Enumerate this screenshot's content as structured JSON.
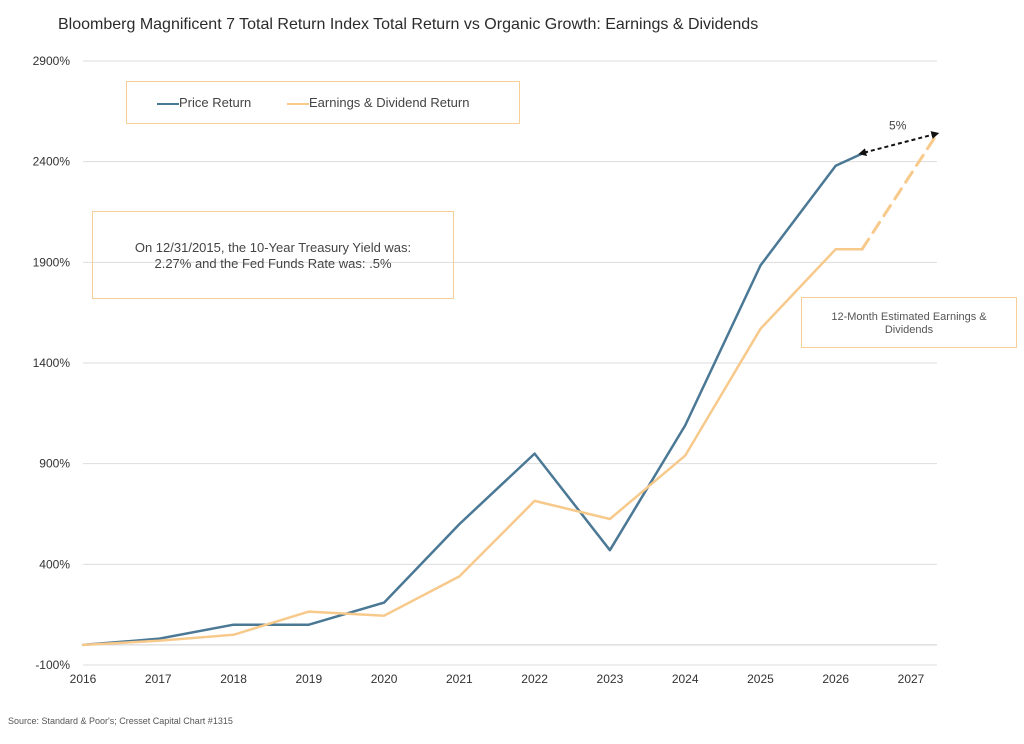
{
  "title": "Bloomberg Magnificent 7 Total Return Index Total Return vs Organic Growth: Earnings & Dividends",
  "source": "Source: Standard & Poor's; Cresset Capital Chart #1315",
  "note": {
    "line1": "On 12/31/2015, the 10-Year Treasury Yield was:",
    "line2": "2.27% and the Fed Funds Rate was: .5%"
  },
  "estimate_label": {
    "line1": "12-Month Estimated Earnings &",
    "line2": "Dividends"
  },
  "gap_label": "5%",
  "colors": {
    "price_return": "#4a7895",
    "earnings_dividend": "#f7c98b",
    "gridline": "#dddddd",
    "box_border": "#f6cf98"
  },
  "chart_data": {
    "type": "line",
    "title": "Bloomberg Magnificent 7 Total Return Index Total Return vs Organic Growth: Earnings & Dividends",
    "xlabel": "",
    "ylabel": "",
    "x_ticks": [
      "2016",
      "2017",
      "2018",
      "2019",
      "2020",
      "2021",
      "2022",
      "2023",
      "2024",
      "2025",
      "2026",
      "2027"
    ],
    "y_ticks": [
      "-100%",
      "400%",
      "900%",
      "1400%",
      "1900%",
      "2400%",
      "2900%"
    ],
    "y_tick_values": [
      -100,
      400,
      900,
      1400,
      1900,
      2400,
      2900
    ],
    "xlim": [
      2016,
      2027.35
    ],
    "ylim": [
      -100,
      2900
    ],
    "grid": true,
    "legend_position": "top-left",
    "series": [
      {
        "name": "Price Return",
        "style": "solid",
        "x": [
          2016,
          2017,
          2018,
          2019,
          2020,
          2021,
          2022,
          2023,
          2024,
          2025,
          2026,
          2026.35
        ],
        "y": [
          0,
          30,
          100,
          100,
          210,
          600,
          950,
          470,
          1090,
          1885,
          2380,
          2440
        ]
      },
      {
        "name": "Earnings & Dividend Return",
        "style": "solid",
        "x": [
          2016,
          2017,
          2018,
          2019,
          2020,
          2021,
          2022,
          2023,
          2024,
          2025,
          2026,
          2026.35
        ],
        "y": [
          0,
          20,
          50,
          165,
          145,
          340,
          715,
          625,
          940,
          1570,
          1965,
          1965
        ]
      },
      {
        "name": "12-Month Estimated Earnings & Dividends",
        "style": "dashed",
        "x": [
          2026.35,
          2027.35
        ],
        "y": [
          1965,
          2540
        ]
      }
    ],
    "annotations": [
      {
        "text": "5%",
        "from": [
          2026.35,
          2440
        ],
        "to": [
          2027.35,
          2540
        ]
      }
    ]
  }
}
